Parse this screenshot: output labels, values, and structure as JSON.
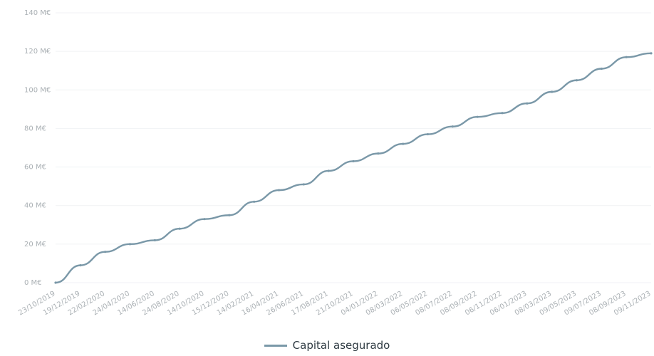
{
  "chart_data": {
    "type": "line",
    "title": "",
    "xlabel": "",
    "ylabel": "",
    "y_ticks": [
      "0 M€",
      "20 M€",
      "40 M€",
      "60 M€",
      "80 M€",
      "100 M€",
      "120 M€",
      "140 M€"
    ],
    "ylim": [
      0,
      140
    ],
    "x_ticks": [
      "23/10/2019",
      "19/12/2019",
      "22/02/2020",
      "24/04/2020",
      "14/06/2020",
      "24/08/2020",
      "14/10/2020",
      "15/12/2020",
      "14/02/2021",
      "16/04/2021",
      "26/06/2021",
      "17/08/2021",
      "21/10/2021",
      "04/01/2022",
      "08/03/2022",
      "06/05/2022",
      "08/07/2022",
      "08/09/2022",
      "06/11/2022",
      "06/01/2023",
      "08/03/2023",
      "09/05/2023",
      "09/07/2023",
      "08/09/2023",
      "09/11/2023"
    ],
    "grid": true,
    "legend_position": "bottom-center",
    "series": [
      {
        "name": "Capital asegurado",
        "color": "#7a98a8",
        "x": [
          "23/10/2019",
          "19/12/2019",
          "22/02/2020",
          "24/04/2020",
          "14/06/2020",
          "24/08/2020",
          "14/10/2020",
          "15/12/2020",
          "14/02/2021",
          "16/04/2021",
          "26/06/2021",
          "17/08/2021",
          "21/10/2021",
          "04/01/2022",
          "08/03/2022",
          "06/05/2022",
          "08/07/2022",
          "08/09/2022",
          "06/11/2022",
          "06/01/2023",
          "08/03/2023",
          "09/05/2023",
          "09/07/2023",
          "08/09/2023",
          "09/11/2023"
        ],
        "values": [
          0,
          9,
          16,
          20,
          22,
          28,
          33,
          35,
          42,
          48,
          51,
          58,
          63,
          67,
          72,
          77,
          81,
          86,
          88,
          93,
          99,
          105,
          111,
          117,
          119
        ]
      }
    ]
  },
  "legend": {
    "label": "Capital asegurado"
  }
}
